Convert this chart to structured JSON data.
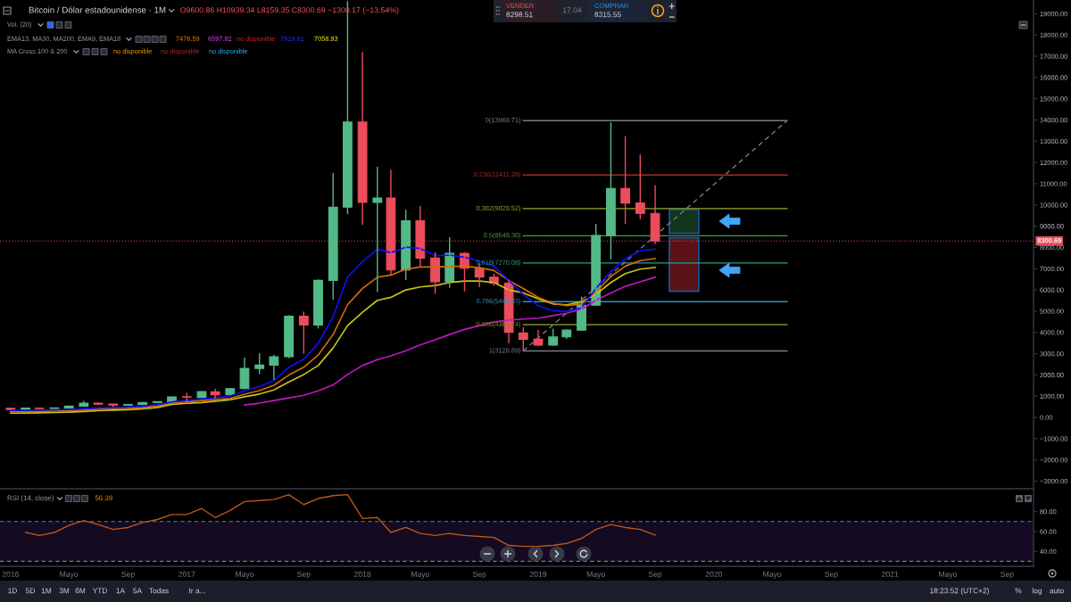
{
  "chart_data": [
    {
      "type": "candlestick",
      "title": "Bitcoin / Dólar estadounidense · 1M",
      "annotations": [
        "O9600.86 H10939.34 L8159.35 C8300.69 −1300.17 (−13.54%)",
        "Vol. (20)",
        "EMA13, MA30, MA200, EMA9, EMA18",
        "7476.59",
        "6597.82",
        "no disponible",
        "7919.91",
        "7058.93",
        "MA Cross 100 & 200",
        "no disponible",
        "no disponible",
        "no disponible",
        "VENDER",
        "8298.51",
        "17.04",
        "COMPRAR",
        "8315.55"
      ],
      "x": [
        "2016-01",
        "2016-02",
        "2016-03",
        "2016-04",
        "2016-05",
        "2016-06",
        "2016-07",
        "2016-08",
        "2016-09",
        "2016-10",
        "2016-11",
        "2016-12",
        "2017-01",
        "2017-02",
        "2017-03",
        "2017-04",
        "2017-05",
        "2017-06",
        "2017-07",
        "2017-08",
        "2017-09",
        "2017-10",
        "2017-11",
        "2017-12",
        "2018-01",
        "2018-02",
        "2018-03",
        "2018-04",
        "2018-05",
        "2018-06",
        "2018-07",
        "2018-08",
        "2018-09",
        "2018-10",
        "2018-11",
        "2018-12",
        "2019-01",
        "2019-02",
        "2019-03",
        "2019-04",
        "2019-05",
        "2019-06",
        "2019-07",
        "2019-08",
        "2019-09"
      ],
      "ohlc": [
        [
          430,
          460,
          350,
          370
        ],
        [
          370,
          440,
          365,
          437
        ],
        [
          437,
          440,
          390,
          416
        ],
        [
          416,
          465,
          412,
          448
        ],
        [
          448,
          550,
          445,
          531
        ],
        [
          531,
          780,
          520,
          673
        ],
        [
          673,
          700,
          605,
          624
        ],
        [
          624,
          625,
          480,
          575
        ],
        [
          575,
          620,
          570,
          609
        ],
        [
          609,
          720,
          605,
          701
        ],
        [
          701,
          755,
          690,
          742
        ],
        [
          742,
          975,
          740,
          965
        ],
        [
          975,
          1160,
          750,
          955
        ],
        [
          940,
          1230,
          910,
          1215
        ],
        [
          1200,
          1340,
          880,
          1065
        ],
        [
          1075,
          1360,
          1050,
          1355
        ],
        [
          1355,
          2810,
          1330,
          2310
        ],
        [
          2300,
          3020,
          2040,
          2460
        ],
        [
          2460,
          2950,
          1760,
          2855
        ],
        [
          2855,
          4810,
          2785,
          4760
        ],
        [
          4760,
          4980,
          2995,
          4350
        ],
        [
          4350,
          6490,
          4180,
          6450
        ],
        [
          6450,
          11500,
          5540,
          9900
        ],
        [
          9900,
          19600,
          9570,
          13900
        ],
        [
          13900,
          17200,
          9070,
          10120
        ],
        [
          10120,
          11800,
          5900,
          10330
        ],
        [
          10330,
          11660,
          6660,
          6940
        ],
        [
          6940,
          9780,
          6470,
          9250
        ],
        [
          9250,
          9960,
          7080,
          7500
        ],
        [
          7500,
          7780,
          5820,
          6380
        ],
        [
          6380,
          8480,
          6100,
          7720
        ],
        [
          7720,
          7780,
          5930,
          7020
        ],
        [
          7020,
          7250,
          6130,
          6600
        ],
        [
          6600,
          6770,
          6200,
          6320
        ],
        [
          6320,
          6490,
          3480,
          4000
        ],
        [
          3980,
          4250,
          3130,
          3680
        ],
        [
          3680,
          4110,
          3370,
          3400
        ],
        [
          3400,
          4180,
          3370,
          3790
        ],
        [
          3790,
          4140,
          3690,
          4110
        ],
        [
          4110,
          5680,
          4080,
          5280
        ],
        [
          5280,
          9100,
          5270,
          8560
        ],
        [
          8560,
          13900,
          7440,
          10780
        ],
        [
          10780,
          13240,
          9110,
          10090
        ],
        [
          10090,
          12370,
          9330,
          9600.86
        ],
        [
          9600.86,
          10939.34,
          8159.35,
          8300.69
        ]
      ],
      "colors": [
        "#eb4d5c",
        "#53b987",
        "#eb4d5c",
        "#53b987",
        "#53b987",
        "#53b987",
        "#eb4d5c",
        "#eb4d5c",
        "#53b987",
        "#53b987",
        "#53b987",
        "#53b987",
        "#eb4d5c",
        "#53b987",
        "#eb4d5c",
        "#53b987",
        "#53b987",
        "#53b987",
        "#53b987",
        "#53b987",
        "#eb4d5c",
        "#53b987",
        "#53b987",
        "#53b987",
        "#eb4d5c",
        "#53b987",
        "#eb4d5c",
        "#53b987",
        "#eb4d5c",
        "#eb4d5c",
        "#53b987",
        "#eb4d5c",
        "#eb4d5c",
        "#eb4d5c",
        "#eb4d5c",
        "#eb4d5c",
        "#eb4d5c",
        "#53b987",
        "#53b987",
        "#53b987",
        "#53b987",
        "#53b987",
        "#eb4d5c",
        "#eb4d5c",
        "#eb4d5c"
      ],
      "series": [
        {
          "type": "line",
          "color": "#c217c2",
          "values": [
            null,
            null,
            null,
            null,
            null,
            null,
            null,
            null,
            null,
            null,
            null,
            null,
            null,
            null,
            null,
            null,
            590,
            670,
            790,
            920,
            1040,
            1250,
            1530,
            2020,
            2440,
            2720,
            2900,
            3140,
            3410,
            3650,
            3900,
            4140,
            4320,
            4490,
            4580,
            4630,
            4670,
            4790,
            4900,
            5090,
            5510,
            5860,
            6170,
            6380,
            6597.82
          ]
        },
        {
          "type": "line",
          "color": "#c9c411",
          "values": [
            200,
            208,
            218,
            230,
            248,
            280,
            315,
            342,
            365,
            400,
            470,
            615,
            660,
            700,
            760,
            830,
            970,
            1100,
            1290,
            1670,
            2020,
            2440,
            3270,
            4320,
            4950,
            5510,
            5650,
            6000,
            6140,
            6210,
            6350,
            6420,
            6420,
            6350,
            6000,
            5860,
            5580,
            5340,
            5300,
            5440,
            5790,
            6350,
            6770,
            6980,
            7058.93
          ]
        },
        {
          "type": "line",
          "color": "#d46a0c",
          "values": [
            265,
            272,
            282,
            295,
            312,
            345,
            382,
            408,
            428,
            465,
            540,
            672,
            730,
            790,
            840,
            890,
            1090,
            1260,
            1510,
            1990,
            2360,
            2930,
            3900,
            5300,
            6070,
            6600,
            6700,
            6980,
            7080,
            7080,
            7110,
            7110,
            7050,
            6910,
            6450,
            6070,
            5650,
            5370,
            5260,
            5340,
            5910,
            6630,
            7120,
            7380,
            7476.59
          ]
        },
        {
          "type": "line",
          "color": "#1010f5",
          "values": [
            330,
            335,
            345,
            358,
            375,
            410,
            445,
            470,
            490,
            530,
            600,
            727,
            790,
            870,
            920,
            1010,
            1250,
            1460,
            1730,
            2360,
            2740,
            3480,
            4740,
            6600,
            7330,
            7920,
            7750,
            8010,
            7950,
            7610,
            7640,
            7540,
            7360,
            7120,
            6450,
            5790,
            5260,
            5020,
            4980,
            5160,
            6070,
            6870,
            7470,
            7850,
            7919.91
          ]
        },
        {
          "type": "line",
          "name": "0(13969.71)",
          "color": "#787b86",
          "x": [
            "2018-12",
            "2020-06"
          ],
          "values": [
            13969.71,
            13969.71
          ]
        },
        {
          "type": "line",
          "name": "0.236(11411.28)",
          "color": "#a52a2a",
          "x": [
            "2018-12",
            "2020-06"
          ],
          "values": [
            11411.28,
            11411.28
          ]
        },
        {
          "type": "line",
          "name": "0.382(9828.52)",
          "color": "#98a829",
          "x": [
            "2018-12",
            "2020-06"
          ],
          "values": [
            9828.52,
            9828.52
          ]
        },
        {
          "type": "line",
          "name": "0.5(8549.30)",
          "color": "#43a047",
          "x": [
            "2018-12",
            "2020-06"
          ],
          "values": [
            8549.3,
            8549.3
          ]
        },
        {
          "type": "line",
          "name": "0.618(7270.08)",
          "color": "#2a9d8f",
          "x": [
            "2018-12",
            "2020-06"
          ],
          "values": [
            7270.08,
            7270.08
          ]
        },
        {
          "type": "line",
          "name": "0.786(5448.83)",
          "color": "#2f8fc8",
          "x": [
            "2018-12",
            "2020-06"
          ],
          "values": [
            5448.83,
            5448.83
          ]
        },
        {
          "type": "line",
          "name": "0.886(4364.74)",
          "color": "#7d8c24",
          "x": [
            "2018-12",
            "2020-06"
          ],
          "values": [
            4364.74,
            4364.74
          ]
        },
        {
          "type": "line",
          "name": "1(3128.89)",
          "color": "#787b86",
          "x": [
            "2018-12",
            "2020-06"
          ],
          "values": [
            3128.89,
            3128.89
          ]
        },
        {
          "type": "line",
          "color": "#787b86",
          "line_style": "dashed",
          "x": [
            "2018-12",
            "2020-06"
          ],
          "values": [
            3128.89,
            13969.71
          ]
        },
        {
          "type": "bar",
          "color": "#12351b",
          "x": [
            "2019-10-31"
          ],
          "base": [
            8661
          ],
          "values": [
            1120
          ]
        },
        {
          "type": "bar",
          "color": "#5a1216",
          "x": [
            "2019-10-31"
          ],
          "base": [
            5933
          ],
          "values": [
            2518
          ]
        }
      ],
      "ref_lines": [
        {
          "axis": "y",
          "value": 8300.69,
          "label": "8300.69",
          "color": "#eb4d5c",
          "line_style": "dotted"
        }
      ],
      "xlim": [
        "2015-12-10",
        "2021-10-26"
      ],
      "ylim": [
        -3358,
        19647
      ],
      "yticks": [
        {
          "value": -3000,
          "label": "−3000.00"
        },
        {
          "value": -2000,
          "label": "−2000.00"
        },
        {
          "value": -1000,
          "label": "−1000.00"
        },
        {
          "value": 0,
          "label": "0.00"
        },
        {
          "value": 1000,
          "label": "1000.00"
        },
        {
          "value": 2000,
          "label": "2000.00"
        },
        {
          "value": 3000,
          "label": "3000.00"
        },
        {
          "value": 4000,
          "label": "4000.00"
        },
        {
          "value": 5000,
          "label": "5000.00"
        },
        {
          "value": 6000,
          "label": "6000.00"
        },
        {
          "value": 7000,
          "label": "7000.00"
        },
        {
          "value": 8000,
          "label": "8000.00"
        },
        {
          "value": 9000,
          "label": "9000.00"
        },
        {
          "value": 10000,
          "label": "10000.00"
        },
        {
          "value": 11000,
          "label": "11000.00"
        },
        {
          "value": 12000,
          "label": "12000.00"
        },
        {
          "value": 13000,
          "label": "13000.00"
        },
        {
          "value": 14000,
          "label": "14000.00"
        },
        {
          "value": 15000,
          "label": "15000.00"
        },
        {
          "value": 16000,
          "label": "16000.00"
        },
        {
          "value": 17000,
          "label": "17000.00"
        },
        {
          "value": 18000,
          "label": "18000.00"
        },
        {
          "value": 19000,
          "label": "19000.00"
        }
      ],
      "tick_labels": "y"
    },
    {
      "type": "line",
      "title": "RSI (14, close)",
      "annotations": [
        "56.39",
        "1D",
        "5D",
        "1M",
        "3M",
        "6M",
        "YTD",
        "1A",
        "5A",
        "Todas",
        "Ir a...",
        "18:23:52 (UTC+2)",
        "%",
        "log",
        "auto"
      ],
      "x": [
        "2016-02",
        "2016-03",
        "2016-04",
        "2016-05",
        "2016-06",
        "2016-07",
        "2016-08",
        "2016-09",
        "2016-10",
        "2016-11",
        "2016-12",
        "2017-01",
        "2017-02",
        "2017-03",
        "2017-04",
        "2017-05",
        "2017-06",
        "2017-07",
        "2017-08",
        "2017-09",
        "2017-10",
        "2017-11",
        "2017-12",
        "2018-01",
        "2018-02",
        "2018-03",
        "2018-04",
        "2018-05",
        "2018-06",
        "2018-07",
        "2018-08",
        "2018-09",
        "2018-10",
        "2018-11",
        "2018-12",
        "2019-01",
        "2019-02",
        "2019-03",
        "2019-04",
        "2019-05",
        "2019-06",
        "2019-07",
        "2019-08",
        "2019-09"
      ],
      "series": [
        {
          "color": "#c0561a",
          "values": [
            59,
            56,
            59,
            66,
            71,
            67,
            62,
            64,
            69,
            72,
            77,
            77,
            83,
            74,
            81,
            90,
            91,
            92,
            97,
            87,
            93,
            96,
            97,
            73,
            74,
            59,
            64,
            58,
            56,
            58,
            56,
            55,
            54,
            46,
            45,
            45,
            46,
            48,
            53,
            62,
            67,
            64,
            62,
            56.39
          ]
        }
      ],
      "bands": [
        {
          "axis": "y",
          "from": 30,
          "to": 70,
          "color": "#140a22"
        }
      ],
      "ref_lines": [
        {
          "axis": "y",
          "value": 70,
          "color": "#787b86",
          "line_style": "dashed"
        },
        {
          "axis": "y",
          "value": 30,
          "color": "#787b86",
          "line_style": "dashed"
        }
      ],
      "xlim": [
        "2015-12-10",
        "2021-10-26"
      ],
      "xticks": [
        {
          "value": "2016-01",
          "label": "2016"
        },
        {
          "value": "2016-05",
          "label": "Mayo"
        },
        {
          "value": "2016-09",
          "label": "Sep"
        },
        {
          "value": "2017-01",
          "label": "2017"
        },
        {
          "value": "2017-05",
          "label": "Mayo"
        },
        {
          "value": "2017-09",
          "label": "Sep"
        },
        {
          "value": "2018-01",
          "label": "2018"
        },
        {
          "value": "2018-05",
          "label": "Mayo"
        },
        {
          "value": "2018-09",
          "label": "Sep"
        },
        {
          "value": "2019-01",
          "label": "2019"
        },
        {
          "value": "2019-05",
          "label": "Mayo"
        },
        {
          "value": "2019-09",
          "label": "Sep"
        },
        {
          "value": "2020-01",
          "label": "2020"
        },
        {
          "value": "2020-05",
          "label": "Mayo"
        },
        {
          "value": "2020-09",
          "label": "Sep"
        },
        {
          "value": "2021-01",
          "label": "2021"
        },
        {
          "value": "2021-05",
          "label": "Mayo"
        },
        {
          "value": "2021-09",
          "label": "Sep"
        }
      ],
      "ylim": [
        25,
        102
      ],
      "yticks": [
        {
          "value": 80,
          "label": "80.00"
        },
        {
          "value": 60,
          "label": "60.00"
        },
        {
          "value": 40,
          "label": "40.00"
        }
      ]
    }
  ]
}
